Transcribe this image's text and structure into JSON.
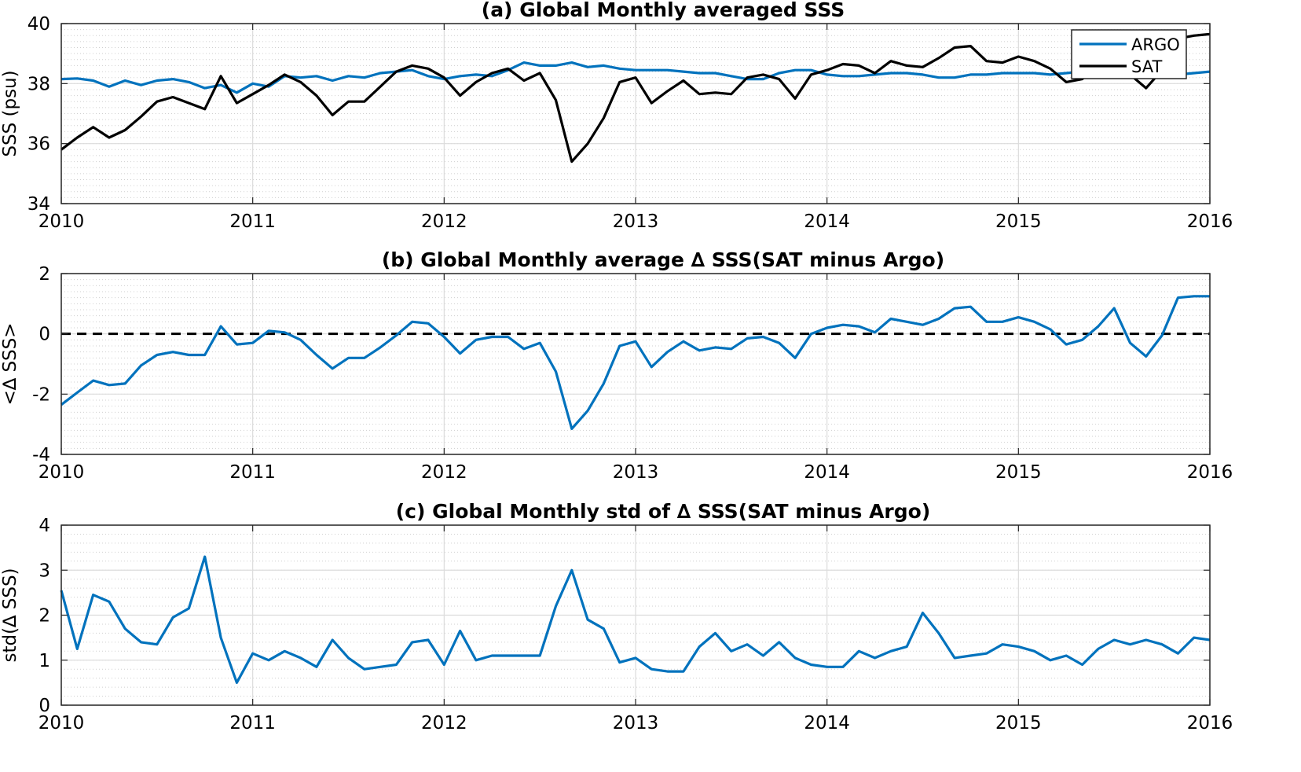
{
  "colors": {
    "argo": "#0072BD",
    "sat": "#000000",
    "delta": "#0072BD",
    "zero_line": "#000000",
    "grid": "#dcdcdc",
    "minor_grid": "#cfcfcf"
  },
  "chart_data": [
    {
      "type": "line",
      "title": "(a) Global Monthly averaged SSS",
      "ylabel": "SSS (psu)",
      "xlim": [
        2010,
        2016
      ],
      "ylim": [
        34,
        40
      ],
      "xticks": [
        "2010",
        "2011",
        "2012",
        "2013",
        "2014",
        "2015",
        "2016"
      ],
      "yticks": [
        "34",
        "36",
        "38",
        "40"
      ],
      "grid": true,
      "legend_position": "top-right",
      "x_start": 2010.0,
      "x_step_years": 0.0833333,
      "series": [
        {
          "name": "ARGO",
          "color_key": "argo",
          "values": [
            38.15,
            38.17,
            38.1,
            37.9,
            38.1,
            37.95,
            38.1,
            38.15,
            38.05,
            37.85,
            37.95,
            37.7,
            38.0,
            37.9,
            38.25,
            38.2,
            38.25,
            38.1,
            38.25,
            38.2,
            38.35,
            38.4,
            38.45,
            38.25,
            38.15,
            38.25,
            38.3,
            38.25,
            38.45,
            38.7,
            38.6,
            38.6,
            38.7,
            38.55,
            38.6,
            38.5,
            38.45,
            38.45,
            38.45,
            38.4,
            38.35,
            38.35,
            38.25,
            38.15,
            38.15,
            38.35,
            38.45,
            38.45,
            38.3,
            38.25,
            38.25,
            38.3,
            38.35,
            38.35,
            38.3,
            38.2,
            38.2,
            38.3,
            38.3,
            38.35,
            38.35,
            38.35,
            38.3,
            38.35,
            38.4,
            38.35,
            38.3,
            38.3,
            38.35,
            38.35,
            38.3,
            38.35,
            38.4
          ]
        },
        {
          "name": "SAT",
          "color_key": "sat",
          "values": [
            35.8,
            36.2,
            36.55,
            36.2,
            36.45,
            36.9,
            37.4,
            37.55,
            37.35,
            37.15,
            38.25,
            37.35,
            37.65,
            37.95,
            38.3,
            38.05,
            37.6,
            36.95,
            37.4,
            37.4,
            37.9,
            38.4,
            38.6,
            38.5,
            38.2,
            37.6,
            38.05,
            38.35,
            38.5,
            38.1,
            38.35,
            37.45,
            35.4,
            36.0,
            36.85,
            38.05,
            38.2,
            37.35,
            37.75,
            38.1,
            37.65,
            37.7,
            37.65,
            38.2,
            38.3,
            38.15,
            37.5,
            38.3,
            38.45,
            38.65,
            38.6,
            38.35,
            38.75,
            38.6,
            38.55,
            38.85,
            39.2,
            39.25,
            38.75,
            38.7,
            38.9,
            38.75,
            38.5,
            38.05,
            38.15,
            38.7,
            38.55,
            38.3,
            37.85,
            38.45,
            39.5,
            39.6,
            39.65
          ]
        }
      ]
    },
    {
      "type": "line",
      "title": "(b) Global Monthly average ∆ SSS(SAT minus Argo)",
      "ylabel": "<∆ SSS>",
      "xlim": [
        2010,
        2016
      ],
      "ylim": [
        -4,
        2
      ],
      "xticks": [
        "2010",
        "2011",
        "2012",
        "2013",
        "2014",
        "2015",
        "2016"
      ],
      "yticks": [
        "-4",
        "-2",
        "0",
        "2"
      ],
      "grid": true,
      "zero_line": true,
      "x_start": 2010.0,
      "x_step_years": 0.0833333,
      "series": [
        {
          "color_key": "delta",
          "values": [
            -2.35,
            -1.95,
            -1.55,
            -1.7,
            -1.65,
            -1.05,
            -0.7,
            -0.6,
            -0.7,
            -0.7,
            0.25,
            -0.35,
            -0.3,
            0.1,
            0.05,
            -0.2,
            -0.7,
            -1.15,
            -0.8,
            -0.8,
            -0.45,
            -0.05,
            0.4,
            0.35,
            -0.1,
            -0.65,
            -0.2,
            -0.1,
            -0.1,
            -0.5,
            -0.3,
            -1.25,
            -3.15,
            -2.55,
            -1.65,
            -0.4,
            -0.25,
            -1.1,
            -0.6,
            -0.25,
            -0.55,
            -0.45,
            -0.5,
            -0.15,
            -0.1,
            -0.3,
            -0.8,
            0.0,
            0.2,
            0.3,
            0.25,
            0.05,
            0.5,
            0.4,
            0.3,
            0.5,
            0.85,
            0.9,
            0.4,
            0.4,
            0.55,
            0.4,
            0.15,
            -0.35,
            -0.2,
            0.25,
            0.85,
            -0.3,
            -0.75,
            -0.05,
            1.2,
            1.25,
            1.25
          ]
        }
      ]
    },
    {
      "type": "line",
      "title": "(c) Global Monthly std of ∆ SSS(SAT minus Argo)",
      "ylabel": "std(∆ SSS)",
      "xlim": [
        2010,
        2016
      ],
      "ylim": [
        0,
        4
      ],
      "xticks": [
        "2010",
        "2011",
        "2012",
        "2013",
        "2014",
        "2015",
        "2016"
      ],
      "yticks": [
        "0",
        "1",
        "2",
        "3",
        "4"
      ],
      "grid": true,
      "x_start": 2010.0,
      "x_step_years": 0.0833333,
      "series": [
        {
          "color_key": "delta",
          "values": [
            2.55,
            1.25,
            2.45,
            2.3,
            1.7,
            1.4,
            1.35,
            1.95,
            2.15,
            3.3,
            1.5,
            0.5,
            1.15,
            1.0,
            1.2,
            1.05,
            0.85,
            1.45,
            1.05,
            0.8,
            0.85,
            0.9,
            1.4,
            1.45,
            0.9,
            1.65,
            1.0,
            1.1,
            1.1,
            1.1,
            1.1,
            2.2,
            3.0,
            1.9,
            1.7,
            0.95,
            1.05,
            0.8,
            0.75,
            0.75,
            1.3,
            1.6,
            1.2,
            1.35,
            1.1,
            1.4,
            1.05,
            0.9,
            0.85,
            0.85,
            1.2,
            1.05,
            1.2,
            1.3,
            2.05,
            1.6,
            1.05,
            1.1,
            1.15,
            1.35,
            1.3,
            1.2,
            1.0,
            1.1,
            0.9,
            1.25,
            1.45,
            1.35,
            1.45,
            1.35,
            1.15,
            1.5,
            1.45
          ]
        }
      ]
    }
  ]
}
